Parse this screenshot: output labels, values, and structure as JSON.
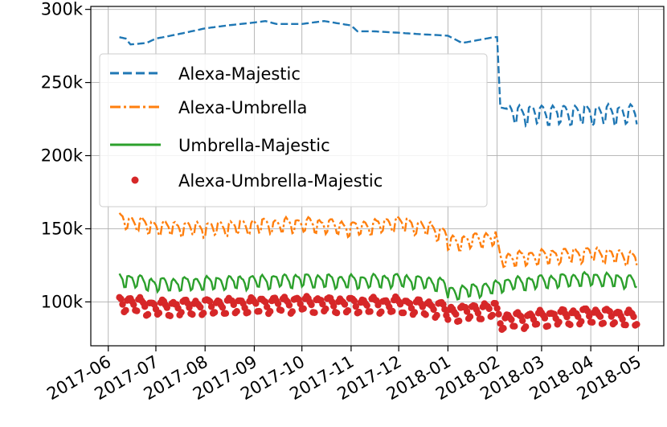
{
  "chart_data": {
    "type": "line",
    "title": "",
    "xlabel": "",
    "ylabel": "",
    "x_ticks": [
      "2017-06",
      "2017-07",
      "2017-08",
      "2017-09",
      "2017-10",
      "2017-11",
      "2017-12",
      "2018-01",
      "2018-02",
      "2018-03",
      "2018-04",
      "2018-05"
    ],
    "y_ticks": [
      "100k",
      "150k",
      "200k",
      "250k",
      "300k"
    ],
    "y_tick_values": [
      100000,
      150000,
      200000,
      250000,
      300000
    ],
    "xlim": [
      "2017-05-21",
      "2018-05-17"
    ],
    "ylim": [
      70000,
      302000
    ],
    "grid": true,
    "legend_position": "top-left",
    "series": [
      {
        "name": "Alexa-Majestic",
        "style": "dashed",
        "color": "#1f77b4",
        "points": [
          [
            "2017-06-08",
            281000
          ],
          [
            "2017-06-12",
            280000
          ],
          [
            "2017-06-15",
            276000
          ],
          [
            "2017-06-25",
            277000
          ],
          [
            "2017-07-01",
            280000
          ],
          [
            "2017-07-15",
            283000
          ],
          [
            "2017-08-01",
            287000
          ],
          [
            "2017-08-15",
            289000
          ],
          [
            "2017-09-01",
            291000
          ],
          [
            "2017-09-08",
            292000
          ],
          [
            "2017-09-15",
            290000
          ],
          [
            "2017-10-01",
            290000
          ],
          [
            "2017-10-15",
            292000
          ],
          [
            "2017-11-01",
            289000
          ],
          [
            "2017-11-05",
            285000
          ],
          [
            "2017-11-15",
            285000
          ],
          [
            "2017-12-01",
            284000
          ],
          [
            "2017-12-15",
            283000
          ],
          [
            "2018-01-01",
            282000
          ],
          [
            "2018-01-10",
            277000
          ],
          [
            "2018-01-20",
            279000
          ],
          [
            "2018-01-30",
            281000
          ],
          [
            "2018-02-01",
            281000
          ],
          [
            "2018-02-03",
            233000
          ],
          [
            "2018-02-07",
            232000
          ]
        ],
        "oscillation_start": "2018-02-07",
        "oscillation_end": "2018-04-30",
        "oscillation_low": 221000,
        "oscillation_high": 236000,
        "oscillation_period_days": 7
      },
      {
        "name": "Alexa-Umbrella",
        "style": "dashdot",
        "color": "#ff7f0e",
        "base_points": [
          [
            "2017-06-08",
            156000
          ],
          [
            "2017-07-01",
            151000
          ],
          [
            "2017-08-01",
            150000
          ],
          [
            "2017-09-01",
            152000
          ],
          [
            "2017-10-01",
            153000
          ],
          [
            "2017-10-20",
            152000
          ],
          [
            "2017-11-01",
            150000
          ],
          [
            "2017-12-01",
            154000
          ],
          [
            "2017-12-20",
            150000
          ],
          [
            "2017-12-31",
            146000
          ],
          [
            "2018-01-01",
            140000
          ],
          [
            "2018-01-31",
            144000
          ],
          [
            "2018-02-03",
            129000
          ],
          [
            "2018-03-01",
            131000
          ],
          [
            "2018-04-01",
            133000
          ],
          [
            "2018-04-30",
            130000
          ]
        ],
        "weekly_amplitude": 5500
      },
      {
        "name": "Umbrella-Majestic",
        "style": "solid",
        "color": "#2ca02c",
        "base_points": [
          [
            "2017-06-08",
            116000
          ],
          [
            "2017-07-01",
            112000
          ],
          [
            "2017-08-01",
            113000
          ],
          [
            "2017-09-01",
            114000
          ],
          [
            "2017-10-01",
            115000
          ],
          [
            "2017-11-01",
            114000
          ],
          [
            "2017-12-01",
            115000
          ],
          [
            "2017-12-31",
            112000
          ],
          [
            "2018-01-01",
            106000
          ],
          [
            "2018-01-31",
            110000
          ],
          [
            "2018-02-03",
            112000
          ],
          [
            "2018-03-01",
            114000
          ],
          [
            "2018-04-01",
            116000
          ],
          [
            "2018-04-30",
            114000
          ]
        ],
        "weekly_amplitude": 5000
      },
      {
        "name": "Alexa-Umbrella-Majestic",
        "style": "markers",
        "color": "#d62728",
        "base_points": [
          [
            "2017-06-08",
            100000
          ],
          [
            "2017-07-01",
            96000
          ],
          [
            "2017-08-01",
            97000
          ],
          [
            "2017-09-01",
            98000
          ],
          [
            "2017-10-01",
            99000
          ],
          [
            "2017-11-01",
            98000
          ],
          [
            "2017-12-01",
            98000
          ],
          [
            "2017-12-31",
            95000
          ],
          [
            "2018-01-01",
            92000
          ],
          [
            "2018-01-31",
            95000
          ],
          [
            "2018-02-03",
            87000
          ],
          [
            "2018-03-01",
            89000
          ],
          [
            "2018-04-01",
            91000
          ],
          [
            "2018-04-30",
            89000
          ]
        ],
        "weekly_amplitude": 5500
      }
    ]
  }
}
